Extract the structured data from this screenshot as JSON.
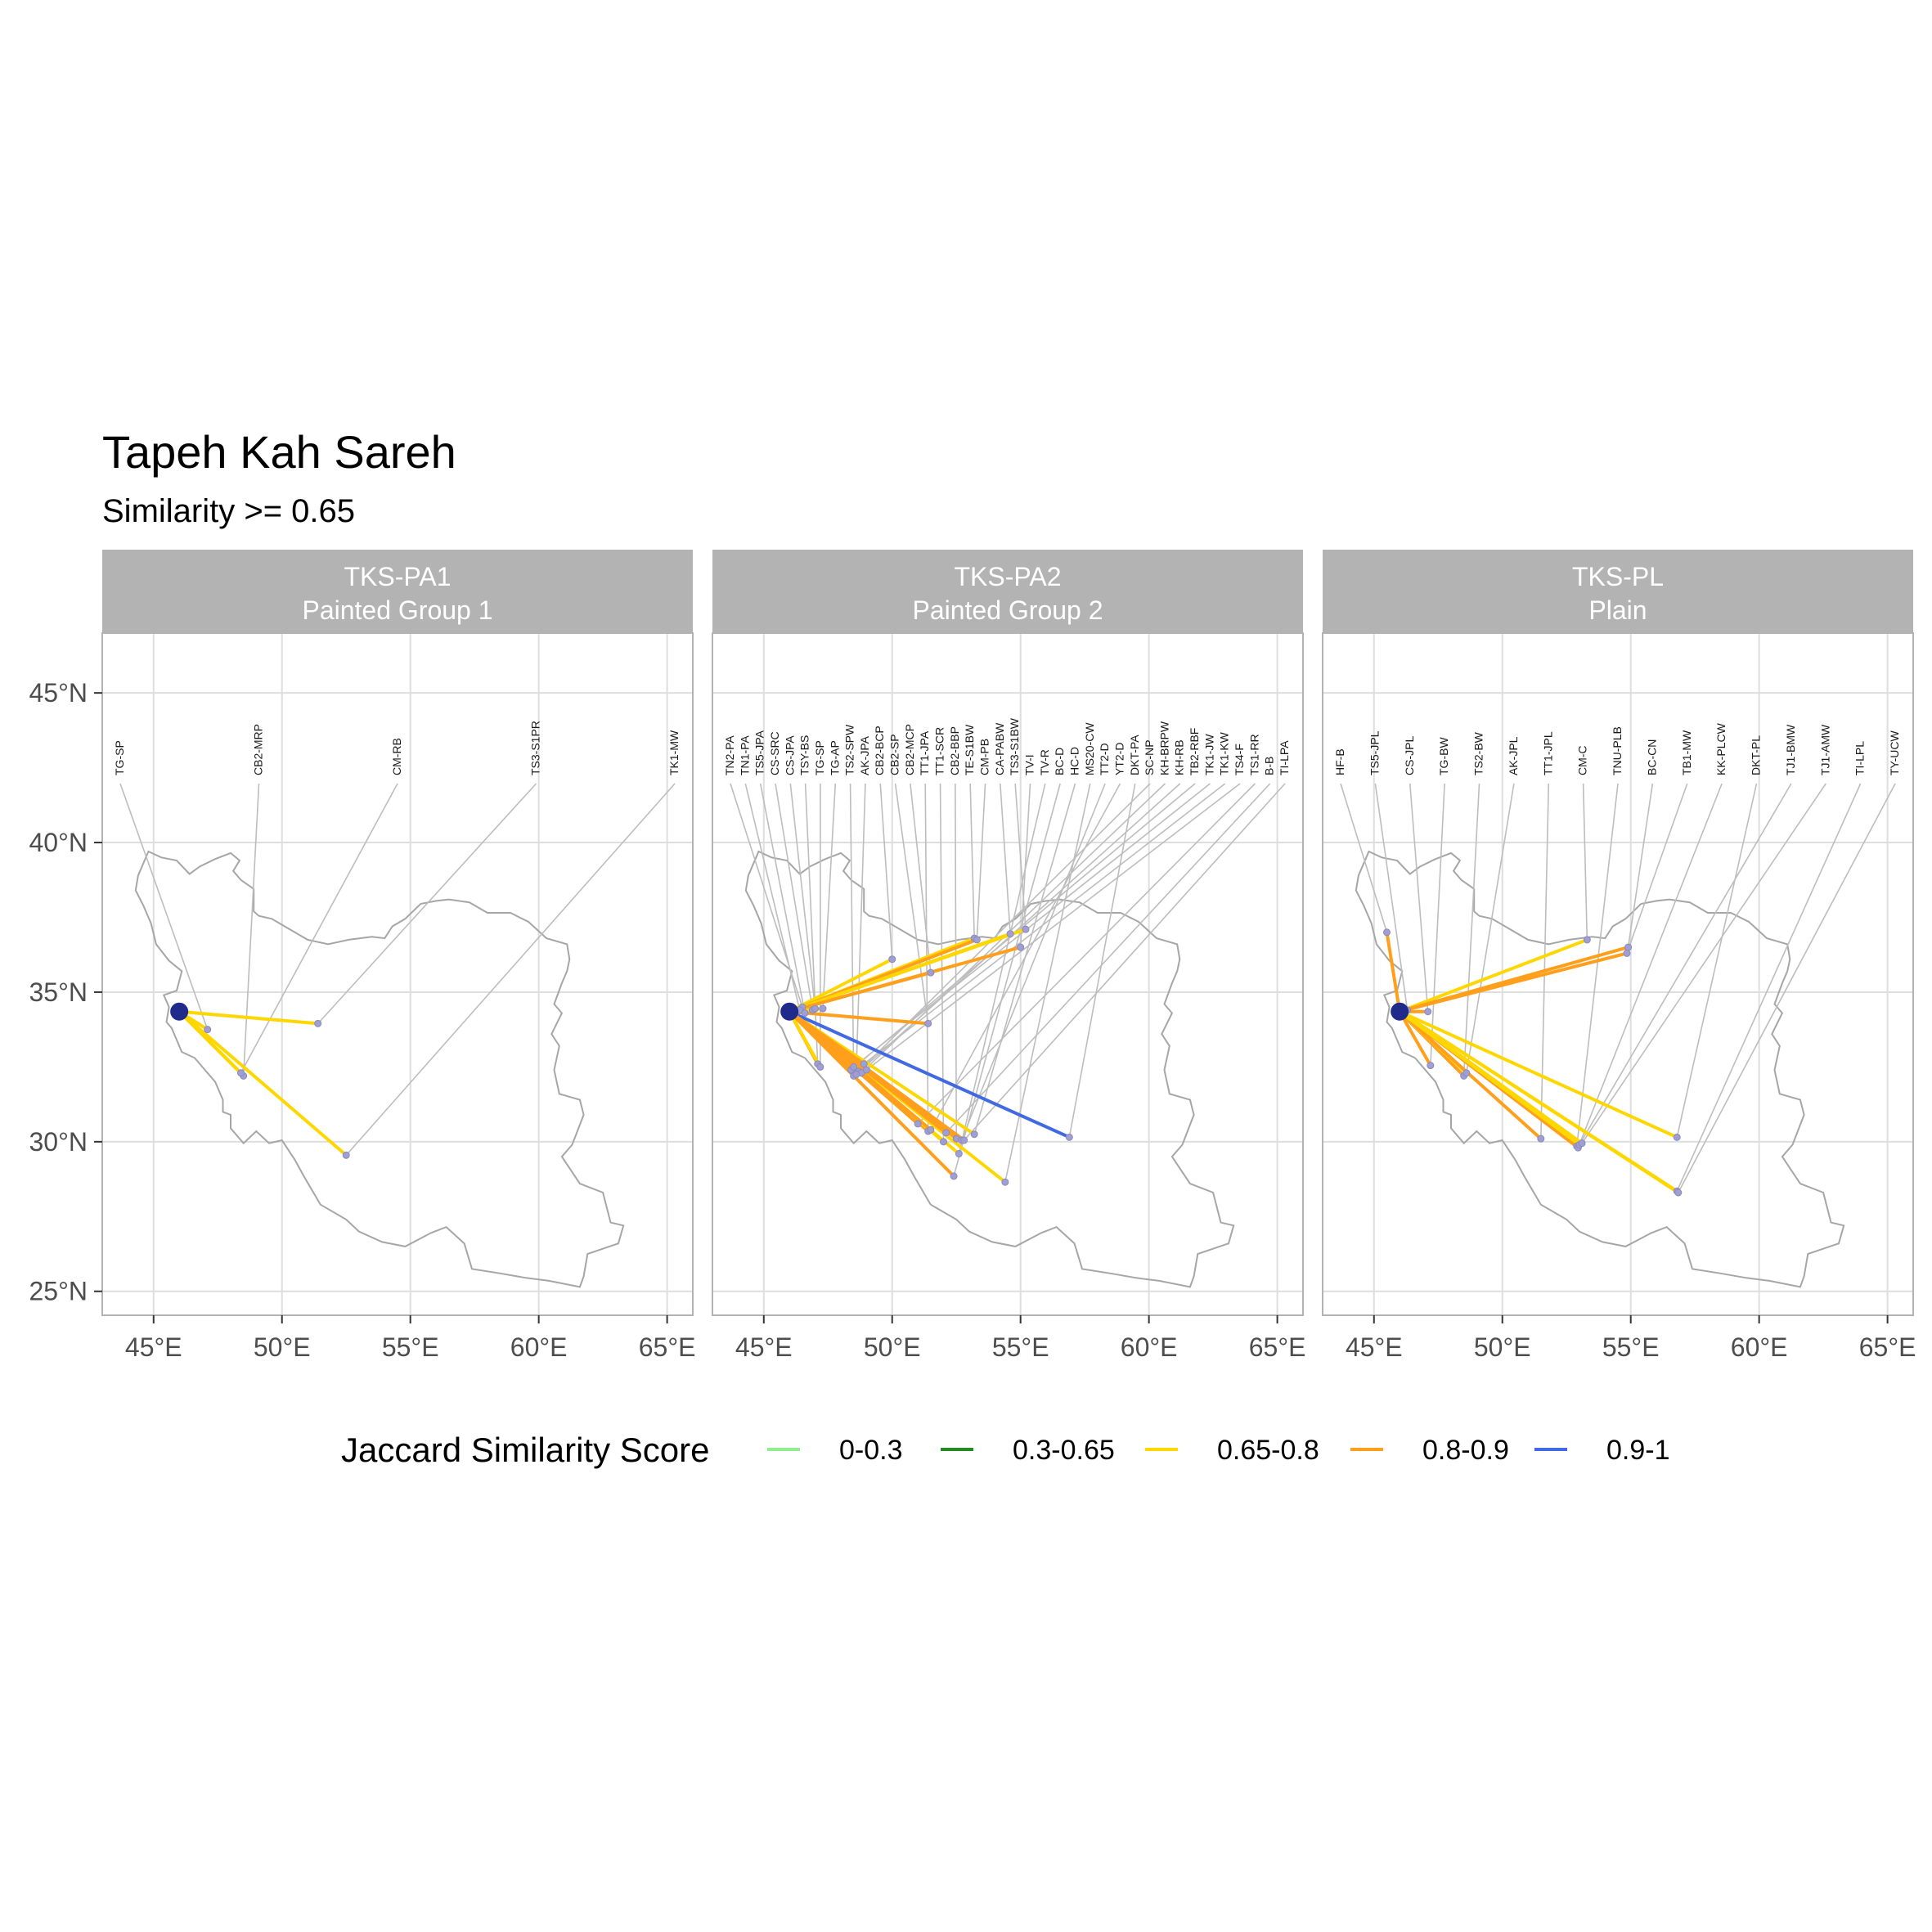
{
  "chart_data": {
    "type": "map",
    "title": "Tapeh Kah Sareh",
    "subtitle": "Similarity >= 0.65",
    "xlim": [
      43,
      66
    ],
    "ylim": [
      24.2,
      47
    ],
    "x_ticks": [
      45,
      50,
      55,
      60,
      65
    ],
    "x_tick_labels": [
      "45°E",
      "50°E",
      "55°E",
      "60°E",
      "65°E"
    ],
    "y_ticks": [
      25,
      30,
      35,
      40,
      45
    ],
    "y_tick_labels": [
      "25°N",
      "30°N",
      "35°N",
      "40°N",
      "45°N"
    ],
    "grid": true,
    "origin": {
      "lon": 46.0,
      "lat": 34.35
    },
    "legend": {
      "title": "Jaccard Similarity Score",
      "position": "bottom",
      "items": [
        {
          "label": "0-0.3",
          "color": "#90EE90"
        },
        {
          "label": "0.3-0.65",
          "color": "#228B22"
        },
        {
          "label": "0.65-0.8",
          "color": "#FFD700"
        },
        {
          "label": "0.8-0.9",
          "color": "#FF9F1C"
        },
        {
          "label": "0.9-1",
          "color": "#4169E1"
        }
      ]
    },
    "panels": [
      {
        "strip_line1": "TKS-PA1",
        "strip_line2": "Painted Group 1",
        "sites": [
          {
            "label": "TG-SP",
            "lon": 47.1,
            "lat": 33.75,
            "score": "0.65-0.8"
          },
          {
            "label": "CB2-MRP",
            "lon": 48.5,
            "lat": 32.2,
            "score": "0.65-0.8"
          },
          {
            "label": "CM-RB",
            "lon": 48.4,
            "lat": 32.3,
            "score": "0.65-0.8"
          },
          {
            "label": "TS3-S1PR",
            "lon": 51.4,
            "lat": 33.95,
            "score": "0.65-0.8"
          },
          {
            "label": "TK1-MW",
            "lon": 52.5,
            "lat": 29.55,
            "score": "0.65-0.8"
          }
        ]
      },
      {
        "strip_line1": "TKS-PA2",
        "strip_line2": "Painted Group 2",
        "sites": [
          {
            "label": "TN2-PA",
            "lon": 46.5,
            "lat": 34.5,
            "score": "0.8-0.9"
          },
          {
            "label": "TN1-PA",
            "lon": 46.4,
            "lat": 34.4,
            "score": "0.8-0.9"
          },
          {
            "label": "TS5-JPA",
            "lon": 46.6,
            "lat": 34.3,
            "score": "0.8-0.9"
          },
          {
            "label": "CS-SRC",
            "lon": 46.9,
            "lat": 34.4,
            "score": "0.65-0.8"
          },
          {
            "label": "CS-JPA",
            "lon": 47.0,
            "lat": 34.45,
            "score": "0.8-0.9"
          },
          {
            "label": "TSY-BS",
            "lon": 47.1,
            "lat": 32.6,
            "score": "0.8-0.9"
          },
          {
            "label": "TG-SP",
            "lon": 47.2,
            "lat": 32.5,
            "score": "0.65-0.8"
          },
          {
            "label": "TG-AP",
            "lon": 47.3,
            "lat": 34.45,
            "score": "0.65-0.8"
          },
          {
            "label": "TS2-SPW",
            "lon": 48.5,
            "lat": 32.2,
            "score": "0.8-0.9"
          },
          {
            "label": "AK-JPA",
            "lon": 48.6,
            "lat": 32.3,
            "score": "0.65-0.8"
          },
          {
            "label": "CB2-BCP",
            "lon": 50.0,
            "lat": 36.1,
            "score": "0.65-0.8"
          },
          {
            "label": "CB2-SP",
            "lon": 51.4,
            "lat": 33.95,
            "score": "0.8-0.9"
          },
          {
            "label": "CB2-MCP",
            "lon": 51.5,
            "lat": 35.65,
            "score": "0.8-0.9"
          },
          {
            "label": "TT1-JPA",
            "lon": 51.4,
            "lat": 30.35,
            "score": "0.8-0.9"
          },
          {
            "label": "TT1-SCR",
            "lon": 52.0,
            "lat": 30.0,
            "score": "0.65-0.8"
          },
          {
            "label": "CB2-BBP",
            "lon": 52.5,
            "lat": 30.1,
            "score": "0.8-0.9"
          },
          {
            "label": "TE-S1BW",
            "lon": 53.2,
            "lat": 36.8,
            "score": "0.65-0.8"
          },
          {
            "label": "CM-PB",
            "lon": 53.3,
            "lat": 36.75,
            "score": "0.8-0.9"
          },
          {
            "label": "CA-PABW",
            "lon": 54.6,
            "lat": 36.95,
            "score": "0.65-0.8"
          },
          {
            "label": "TS3-S1BW",
            "lon": 55.2,
            "lat": 37.1,
            "score": "0.65-0.8"
          },
          {
            "label": "TV-I",
            "lon": 55.0,
            "lat": 36.5,
            "score": "0.8-0.9"
          },
          {
            "label": "TV-R",
            "lon": 52.6,
            "lat": 29.6,
            "score": "0.65-0.8"
          },
          {
            "label": "BC-D",
            "lon": 52.4,
            "lat": 28.85,
            "score": "0.8-0.9"
          },
          {
            "label": "HC-D",
            "lon": 53.2,
            "lat": 30.25,
            "score": "0.65-0.8"
          },
          {
            "label": "MS20-CW",
            "lon": 54.4,
            "lat": 28.65,
            "score": "0.65-0.8"
          },
          {
            "label": "TT2-D",
            "lon": 52.7,
            "lat": 30.05,
            "score": "0.8-0.9"
          },
          {
            "label": "YT2-D",
            "lon": 51.5,
            "lat": 30.4,
            "score": "0.8-0.9"
          },
          {
            "label": "DKT-PA",
            "lon": 56.9,
            "lat": 30.15,
            "score": "0.9-1"
          },
          {
            "label": "SC-NP",
            "lon": 48.7,
            "lat": 32.35,
            "score": "0.8-0.9"
          },
          {
            "label": "KH-BRPW",
            "lon": 48.8,
            "lat": 32.3,
            "score": "0.8-0.9"
          },
          {
            "label": "KH-RB",
            "lon": 48.6,
            "lat": 32.25,
            "score": "0.8-0.9"
          },
          {
            "label": "TB2-RBF",
            "lon": 48.4,
            "lat": 32.4,
            "score": "0.8-0.9"
          },
          {
            "label": "TK1-JW",
            "lon": 48.5,
            "lat": 32.5,
            "score": "0.8-0.9"
          },
          {
            "label": "TK1-KW",
            "lon": 48.9,
            "lat": 32.6,
            "score": "0.8-0.9"
          },
          {
            "label": "TS4-F",
            "lon": 49.0,
            "lat": 32.4,
            "score": "0.8-0.9"
          },
          {
            "label": "TS1-RR",
            "lon": 51.0,
            "lat": 30.6,
            "score": "0.8-0.9"
          },
          {
            "label": "B-B",
            "lon": 52.1,
            "lat": 30.3,
            "score": "0.8-0.9"
          },
          {
            "label": "TI-LPA",
            "lon": 52.8,
            "lat": 30.05,
            "score": "0.8-0.9"
          }
        ]
      },
      {
        "strip_line1": "TKS-PL",
        "strip_line2": "Plain",
        "sites": [
          {
            "label": "HF-B",
            "lon": 45.5,
            "lat": 37.0,
            "score": "0.8-0.9"
          },
          {
            "label": "TS5-JPL",
            "lon": 46.3,
            "lat": 34.4,
            "score": "0.8-0.9"
          },
          {
            "label": "CS-JPL",
            "lon": 47.1,
            "lat": 34.35,
            "score": "0.8-0.9"
          },
          {
            "label": "TG-BW",
            "lon": 47.2,
            "lat": 32.55,
            "score": "0.8-0.9"
          },
          {
            "label": "TS2-BW",
            "lon": 48.5,
            "lat": 32.2,
            "score": "0.8-0.9"
          },
          {
            "label": "AK-JPL",
            "lon": 48.6,
            "lat": 32.3,
            "score": "0.65-0.8"
          },
          {
            "label": "TT1-JPL",
            "lon": 51.5,
            "lat": 30.1,
            "score": "0.8-0.9"
          },
          {
            "label": "CM-C",
            "lon": 53.3,
            "lat": 36.75,
            "score": "0.65-0.8"
          },
          {
            "label": "TNU-PLB",
            "lon": 52.9,
            "lat": 29.85,
            "score": "0.65-0.8"
          },
          {
            "label": "BC-CN",
            "lon": 54.9,
            "lat": 36.5,
            "score": "0.8-0.9"
          },
          {
            "label": "TB1-MW",
            "lon": 54.85,
            "lat": 36.3,
            "score": "0.8-0.9"
          },
          {
            "label": "KK-PLCW",
            "lon": 52.95,
            "lat": 29.8,
            "score": "0.8-0.9"
          },
          {
            "label": "DKT-PL",
            "lon": 56.8,
            "lat": 30.15,
            "score": "0.65-0.8"
          },
          {
            "label": "TJ1-BMW",
            "lon": 53.0,
            "lat": 29.9,
            "score": "0.65-0.8"
          },
          {
            "label": "TJ1-AMW",
            "lon": 53.1,
            "lat": 29.95,
            "score": "0.65-0.8"
          },
          {
            "label": "TI-LPL",
            "lon": 56.8,
            "lat": 28.35,
            "score": "0.65-0.8"
          },
          {
            "label": "TY-UCW",
            "lon": 56.85,
            "lat": 28.3,
            "score": "0.65-0.8"
          }
        ]
      }
    ]
  }
}
